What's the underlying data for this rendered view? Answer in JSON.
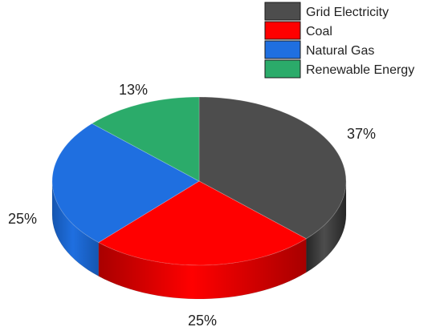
{
  "chart_data": {
    "type": "pie",
    "three_d": true,
    "categories": [
      "Grid Electricity",
      "Coal",
      "Natural Gas",
      "Renewable Energy"
    ],
    "values": [
      37,
      25,
      25,
      13
    ],
    "labels": [
      "37%",
      "25%",
      "25%",
      "13%"
    ],
    "colors": [
      "#4d4d4d",
      "#ff0000",
      "#1f6fe0",
      "#2bab6a"
    ],
    "side_colors": [
      "#262626",
      "#a80000",
      "#1556b0",
      "#1a7a48"
    ],
    "legend_position": "top-right",
    "start_angle_deg": 90,
    "direction": "clockwise",
    "title": ""
  }
}
